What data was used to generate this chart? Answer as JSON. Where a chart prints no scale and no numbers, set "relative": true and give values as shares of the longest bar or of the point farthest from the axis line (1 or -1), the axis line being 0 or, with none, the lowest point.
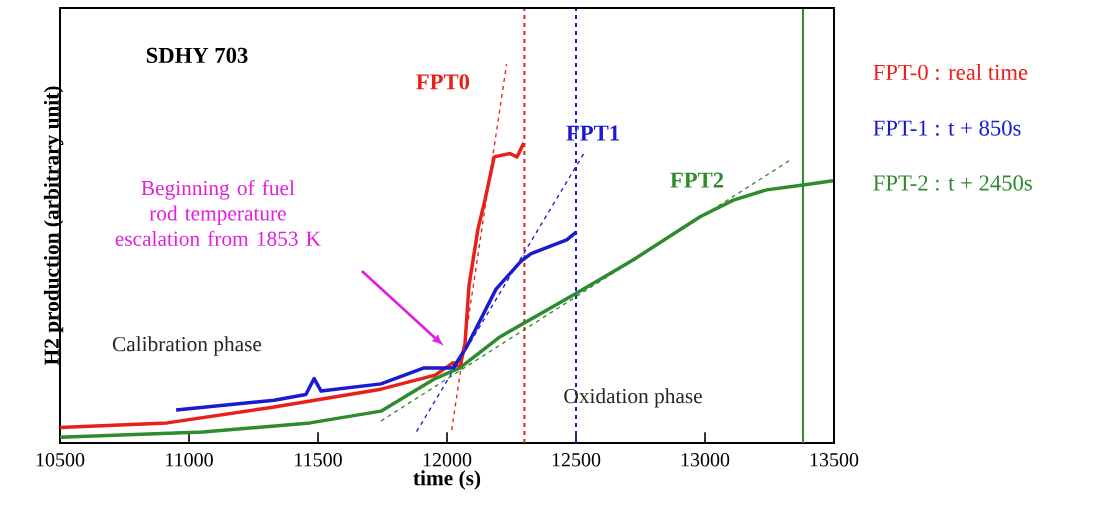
{
  "chart_data": {
    "type": "line",
    "xlabel": "time (s)",
    "ylabel": "H2 production (arbitrary unit)",
    "relative": true,
    "xlim": [
      10500,
      13500
    ],
    "xticks": [
      10500,
      11000,
      11500,
      12000,
      12500,
      13000,
      13500
    ],
    "tick_labels": "x",
    "legend": false,
    "grid": false,
    "marker": "none",
    "series": [
      {
        "name": "FPT0",
        "color": "#e8201a",
        "x": [
          10500,
          10915,
          11330,
          11744,
          11954,
          12024,
          12050,
          12070,
          12085,
          12120,
          12147,
          12183,
          12244,
          12271,
          12298
        ],
        "values": [
          0.041,
          0.053,
          0.095,
          0.142,
          0.179,
          0.212,
          0.198,
          0.264,
          0.414,
          0.565,
          0.641,
          0.755,
          0.764,
          0.755,
          0.792
        ]
      },
      {
        "name": "FPT1",
        "color": "#1a1ad0",
        "x": [
          10950,
          11330,
          11453,
          11485,
          11512,
          11744,
          11911,
          12024,
          12078,
          12190,
          12287,
          12326,
          12464,
          12502
        ],
        "values": [
          0.087,
          0.113,
          0.128,
          0.17,
          0.137,
          0.156,
          0.198,
          0.198,
          0.256,
          0.406,
          0.48,
          0.5,
          0.536,
          0.557
        ]
      },
      {
        "name": "FPT2",
        "color": "#2e8b2e",
        "x": [
          10500,
          11054,
          11469,
          11744,
          11954,
          12050,
          12205,
          12503,
          12721,
          12981,
          13110,
          13239,
          13380,
          13496
        ],
        "values": [
          0.015,
          0.029,
          0.053,
          0.084,
          0.17,
          0.198,
          0.28,
          0.396,
          0.483,
          0.597,
          0.641,
          0.668,
          0.681,
          0.692
        ]
      },
      {
        "type": "line",
        "line_style": "dashed",
        "color": "#e8201a",
        "x": [
          12018,
          12231
        ],
        "values": [
          0.034,
          1
        ]
      },
      {
        "type": "line",
        "line_style": "dashed",
        "color": "#1a1ad0",
        "x": [
          11882,
          12532
        ],
        "values": [
          0.03,
          0.766
        ]
      },
      {
        "type": "line",
        "line_style": "dashed",
        "color": "#2e8b2e",
        "x": [
          11744,
          13336
        ],
        "values": [
          0.058,
          0.749
        ]
      }
    ],
    "ref_lines": [
      {
        "axis": "x",
        "value": 12300,
        "color": "#e8201a",
        "line_style": "dashed"
      },
      {
        "axis": "x",
        "value": 12500,
        "color": "#1a1ad0",
        "line_style": "dashed"
      },
      {
        "axis": "x",
        "value": 13380,
        "color": "#2e8b2e",
        "line_style": "solid"
      }
    ],
    "annotations": [
      "FPT-0 : real time",
      "FPT-1 : t + 850s",
      "FPT-2 : t + 2450s",
      "SDHY 703",
      "Calibration phase",
      "Oxidation phase",
      "Beginning of fuel rod temperature escalation from 1853 K"
    ]
  }
}
